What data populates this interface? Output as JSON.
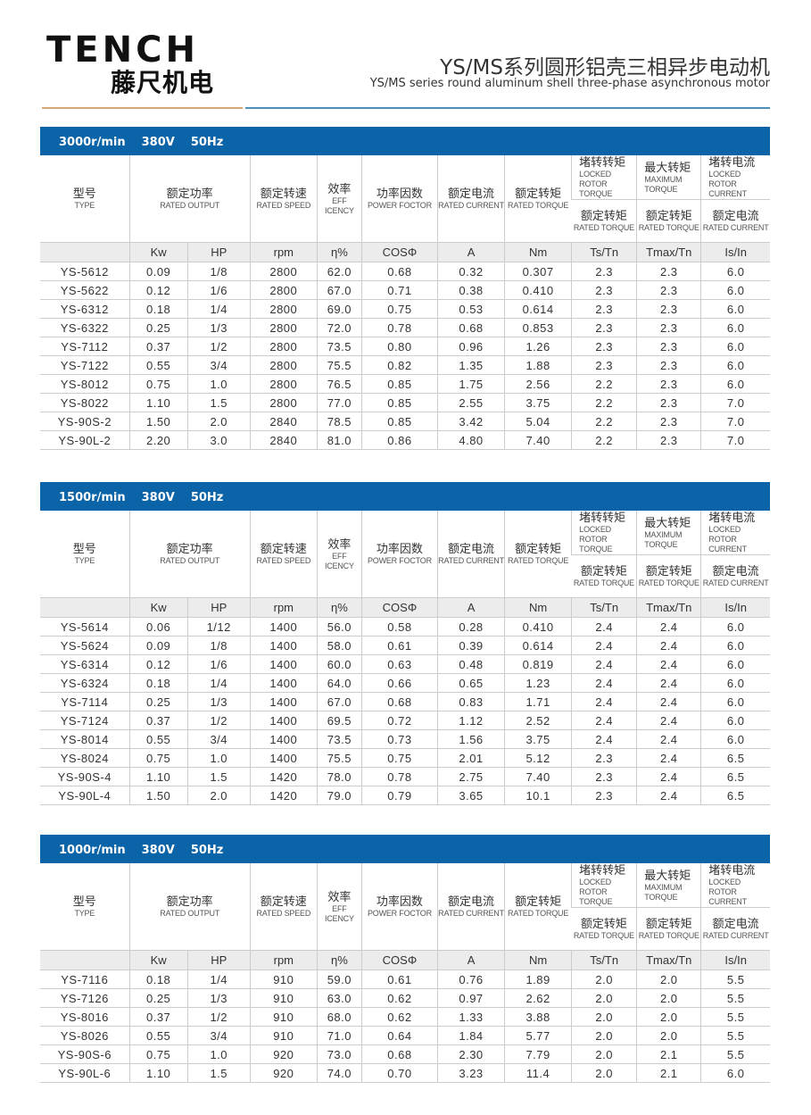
{
  "brand": {
    "logo_en": "TENCH",
    "logo_cn": "藤尺机电"
  },
  "title": {
    "cn": "YS/MS系列圆形铝壳三相异步电动机",
    "en": "YS/MS series round aluminum shell three-phase asynchronous motor"
  },
  "colors": {
    "band": "#0b63a8",
    "gold_rule": "#d4a870",
    "blue_rule": "#4e8fb8",
    "units_bg": "#ececec"
  },
  "header": {
    "type": {
      "cn": "型号",
      "en": "TYPE"
    },
    "output": {
      "cn": "额定功率",
      "en": "RATED OUTPUT"
    },
    "speed": {
      "cn": "额定转速",
      "en": "RATED SPEED"
    },
    "eff": {
      "cn": "效率",
      "en": "EFF ICENCY"
    },
    "pf": {
      "cn": "功率因数",
      "en": "POWER FOCTOR"
    },
    "current": {
      "cn": "额定电流",
      "en": "RATED CURRENT"
    },
    "torque": {
      "cn": "额定转矩",
      "en": "RATED TORQUE"
    },
    "locked_torque": {
      "cn": "堵转转矩",
      "en": "LOCKED ROTOR TORQUE",
      "cn2": "额定转矩",
      "en2": "RATED TORQUE"
    },
    "max_torque": {
      "cn": "最大转矩",
      "en": "MAXIMUM TORQUE",
      "cn2": "额定转矩",
      "en2": "RATED TORQUE"
    },
    "locked_current": {
      "cn": "堵转电流",
      "en": "LOCKED ROTOR CURRENT",
      "cn2": "额定电流",
      "en2": "RATED CURRENT"
    },
    "units": [
      "Kw",
      "HP",
      "rpm",
      "η%",
      "COSΦ",
      "A",
      "Nm",
      "Ts/Tn",
      "Tmax/Tn",
      "Is/In"
    ]
  },
  "tables": [
    {
      "speed": "3000r/min",
      "voltage": "380V",
      "freq": "50Hz",
      "rows": [
        [
          "YS-5612",
          "0.09",
          "1/8",
          "2800",
          "62.0",
          "0.68",
          "0.32",
          "0.307",
          "2.3",
          "2.3",
          "6.0"
        ],
        [
          "YS-5622",
          "0.12",
          "1/6",
          "2800",
          "67.0",
          "0.71",
          "0.38",
          "0.410",
          "2.3",
          "2.3",
          "6.0"
        ],
        [
          "YS-6312",
          "0.18",
          "1/4",
          "2800",
          "69.0",
          "0.75",
          "0.53",
          "0.614",
          "2.3",
          "2.3",
          "6.0"
        ],
        [
          "YS-6322",
          "0.25",
          "1/3",
          "2800",
          "72.0",
          "0.78",
          "0.68",
          "0.853",
          "2.3",
          "2.3",
          "6.0"
        ],
        [
          "YS-7112",
          "0.37",
          "1/2",
          "2800",
          "73.5",
          "0.80",
          "0.96",
          "1.26",
          "2.3",
          "2.3",
          "6.0"
        ],
        [
          "YS-7122",
          "0.55",
          "3/4",
          "2800",
          "75.5",
          "0.82",
          "1.35",
          "1.88",
          "2.3",
          "2.3",
          "6.0"
        ],
        [
          "YS-8012",
          "0.75",
          "1.0",
          "2800",
          "76.5",
          "0.85",
          "1.75",
          "2.56",
          "2.2",
          "2.3",
          "6.0"
        ],
        [
          "YS-8022",
          "1.10",
          "1.5",
          "2800",
          "77.0",
          "0.85",
          "2.55",
          "3.75",
          "2.2",
          "2.3",
          "7.0"
        ],
        [
          "YS-90S-2",
          "1.50",
          "2.0",
          "2840",
          "78.5",
          "0.85",
          "3.42",
          "5.04",
          "2.2",
          "2.3",
          "7.0"
        ],
        [
          "YS-90L-2",
          "2.20",
          "3.0",
          "2840",
          "81.0",
          "0.86",
          "4.80",
          "7.40",
          "2.2",
          "2.3",
          "7.0"
        ]
      ]
    },
    {
      "speed": "1500r/min",
      "voltage": "380V",
      "freq": "50Hz",
      "rows": [
        [
          "YS-5614",
          "0.06",
          "1/12",
          "1400",
          "56.0",
          "0.58",
          "0.28",
          "0.410",
          "2.4",
          "2.4",
          "6.0"
        ],
        [
          "YS-5624",
          "0.09",
          "1/8",
          "1400",
          "58.0",
          "0.61",
          "0.39",
          "0.614",
          "2.4",
          "2.4",
          "6.0"
        ],
        [
          "YS-6314",
          "0.12",
          "1/6",
          "1400",
          "60.0",
          "0.63",
          "0.48",
          "0.819",
          "2.4",
          "2.4",
          "6.0"
        ],
        [
          "YS-6324",
          "0.18",
          "1/4",
          "1400",
          "64.0",
          "0.66",
          "0.65",
          "1.23",
          "2.4",
          "2.4",
          "6.0"
        ],
        [
          "YS-7114",
          "0.25",
          "1/3",
          "1400",
          "67.0",
          "0.68",
          "0.83",
          "1.71",
          "2.4",
          "2.4",
          "6.0"
        ],
        [
          "YS-7124",
          "0.37",
          "1/2",
          "1400",
          "69.5",
          "0.72",
          "1.12",
          "2.52",
          "2.4",
          "2.4",
          "6.0"
        ],
        [
          "YS-8014",
          "0.55",
          "3/4",
          "1400",
          "73.5",
          "0.73",
          "1.56",
          "3.75",
          "2.4",
          "2.4",
          "6.0"
        ],
        [
          "YS-8024",
          "0.75",
          "1.0",
          "1400",
          "75.5",
          "0.75",
          "2.01",
          "5.12",
          "2.3",
          "2.4",
          "6.5"
        ],
        [
          "YS-90S-4",
          "1.10",
          "1.5",
          "1420",
          "78.0",
          "0.78",
          "2.75",
          "7.40",
          "2.3",
          "2.4",
          "6.5"
        ],
        [
          "YS-90L-4",
          "1.50",
          "2.0",
          "1420",
          "79.0",
          "0.79",
          "3.65",
          "10.1",
          "2.3",
          "2.4",
          "6.5"
        ]
      ]
    },
    {
      "speed": "1000r/min",
      "voltage": "380V",
      "freq": "50Hz",
      "rows": [
        [
          "YS-7116",
          "0.18",
          "1/4",
          "910",
          "59.0",
          "0.61",
          "0.76",
          "1.89",
          "2.0",
          "2.0",
          "5.5"
        ],
        [
          "YS-7126",
          "0.25",
          "1/3",
          "910",
          "63.0",
          "0.62",
          "0.97",
          "2.62",
          "2.0",
          "2.0",
          "5.5"
        ],
        [
          "YS-8016",
          "0.37",
          "1/2",
          "910",
          "68.0",
          "0.62",
          "1.33",
          "3.88",
          "2.0",
          "2.0",
          "5.5"
        ],
        [
          "YS-8026",
          "0.55",
          "3/4",
          "910",
          "71.0",
          "0.64",
          "1.84",
          "5.77",
          "2.0",
          "2.0",
          "5.5"
        ],
        [
          "YS-90S-6",
          "0.75",
          "1.0",
          "920",
          "73.0",
          "0.68",
          "2.30",
          "7.79",
          "2.0",
          "2.1",
          "5.5"
        ],
        [
          "YS-90L-6",
          "1.10",
          "1.5",
          "920",
          "74.0",
          "0.70",
          "3.23",
          "11.4",
          "2.0",
          "2.1",
          "6.0"
        ]
      ]
    }
  ]
}
